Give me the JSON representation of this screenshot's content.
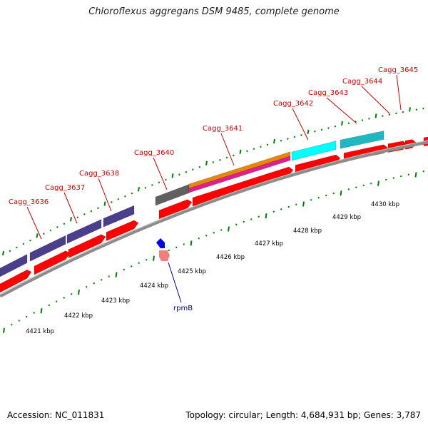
{
  "title": "Chloroflexus aggregans DSM 9485, complete genome",
  "accession_text": "Accession: NC_011831",
  "summary_text": "Topology: circular; Length: 4,684,931 bp; Genes: 3,787",
  "colors": {
    "forward_cds": "#ff0000",
    "backbone": "#8c8c8c",
    "cog_purple": "#4b3f8c",
    "cog_grey": "#606060",
    "cog_orange": "#e8860a",
    "cog_magenta": "#e0208a",
    "cog_cyan": "#00ffff",
    "cog_teal": "#20b8c0",
    "tick_green": "#008000",
    "gene_label_red": "#cc0000",
    "gene_label_blue": "#000099",
    "rna_blue": "#0000ee",
    "rna_pink": "#f08080"
  },
  "gene_labels": [
    {
      "text": "Cagg_3636"
    },
    {
      "text": "Cagg_3637"
    },
    {
      "text": "Cagg_3638"
    },
    {
      "text": "Cagg_3640"
    },
    {
      "text": "Cagg_3641"
    },
    {
      "text": "Cagg_3642"
    },
    {
      "text": "Cagg_3643"
    },
    {
      "text": "Cagg_3644"
    },
    {
      "text": "Cagg_3645"
    }
  ],
  "rna_label": "rpmB",
  "kbp_labels": [
    "4421 kbp",
    "4422 kbp",
    "4423 kbp",
    "4424 kbp",
    "4425 kbp",
    "4426 kbp",
    "4427 kbp",
    "4428 kbp",
    "4429 kbp",
    "4430 kbp"
  ]
}
